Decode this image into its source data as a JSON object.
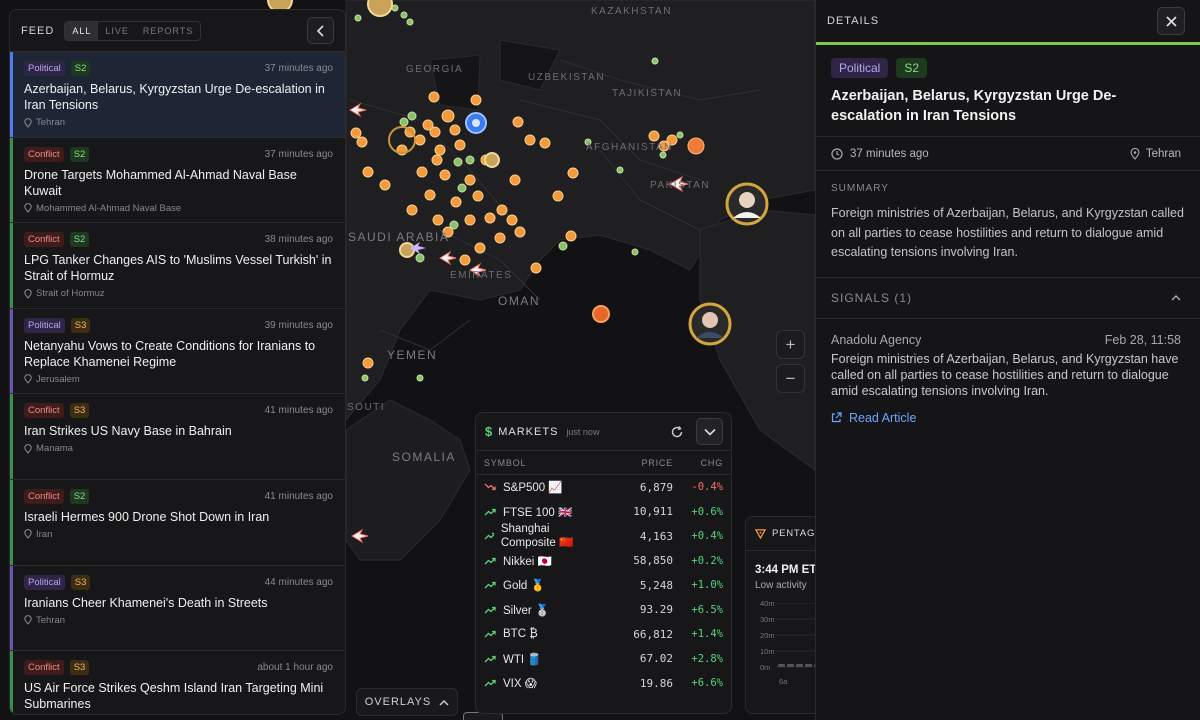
{
  "map": {
    "labels": [
      "GEORGIA",
      "KAZAKHSTAN",
      "UZBEKISTAN",
      "TAJIKISTAN",
      "AFGHANISTAN",
      "PAKISTAN",
      "SAUDI ARABIA",
      "EMIRATES",
      "OMAN",
      "YEMEN",
      "SOMALIA",
      "SOUTI"
    ],
    "zoom_in": "+",
    "zoom_out": "−"
  },
  "feed": {
    "title": "FEED",
    "filters": [
      "ALL",
      "LIVE",
      "REPORTS"
    ],
    "active_filter": "ALL",
    "items": [
      {
        "category": "Political",
        "severity": "S2",
        "time": "37 minutes ago",
        "title": "Azerbaijan, Belarus, Kyrgyzstan Urge De-escalation in Iran Tensions",
        "location": "Tehran",
        "selected": true
      },
      {
        "category": "Conflict",
        "severity": "S2",
        "time": "37 minutes ago",
        "title": "Drone Targets Mohammed Al-Ahmad Naval Base Kuwait",
        "location": "Mohammed Al-Ahmad Naval Base"
      },
      {
        "category": "Conflict",
        "severity": "S2",
        "time": "38 minutes ago",
        "title": "LPG Tanker Changes AIS to 'Muslims Vessel Turkish' in Strait of Hormuz",
        "location": "Strait of Hormuz"
      },
      {
        "category": "Political",
        "severity": "S3",
        "time": "39 minutes ago",
        "title": "Netanyahu Vows to Create Conditions for Iranians to Replace Khamenei Regime",
        "location": "Jerusalem"
      },
      {
        "category": "Conflict",
        "severity": "S3",
        "time": "41 minutes ago",
        "title": "Iran Strikes US Navy Base in Bahrain",
        "location": "Manama"
      },
      {
        "category": "Conflict",
        "severity": "S2",
        "time": "41 minutes ago",
        "title": "Israeli Hermes 900 Drone Shot Down in Iran",
        "location": "Iran"
      },
      {
        "category": "Political",
        "severity": "S3",
        "time": "44 minutes ago",
        "title": "Iranians Cheer Khamenei's Death in Streets",
        "location": "Tehran"
      },
      {
        "category": "Conflict",
        "severity": "S3",
        "time": "about 1 hour ago",
        "title": "US Air Force Strikes Qeshm Island Iran Targeting Mini Submarines",
        "location": ""
      }
    ]
  },
  "overlays": {
    "label": "OVERLAYS"
  },
  "markets": {
    "title": "MARKETS",
    "updated": "just now",
    "columns": {
      "symbol": "SYMBOL",
      "price": "PRICE",
      "chg": "CHG"
    },
    "rows": [
      {
        "symbol": "S&P500 📈",
        "price": "6,879",
        "chg": "-0.4%",
        "dir": "down"
      },
      {
        "symbol": "FTSE 100 🇬🇧",
        "price": "10,911",
        "chg": "+0.6%",
        "dir": "up"
      },
      {
        "symbol": "Shanghai Composite 🇨🇳",
        "price": "4,163",
        "chg": "+0.4%",
        "dir": "up"
      },
      {
        "symbol": "Nikkei 🇯🇵",
        "price": "58,850",
        "chg": "+0.2%",
        "dir": "up"
      },
      {
        "symbol": "Gold 🥇",
        "price": "5,248",
        "chg": "+1.0%",
        "dir": "up"
      },
      {
        "symbol": "Silver 🥈",
        "price": "93.29",
        "chg": "+6.5%",
        "dir": "up"
      },
      {
        "symbol": "BTC ₿",
        "price": "66,812",
        "chg": "+1.4%",
        "dir": "up"
      },
      {
        "symbol": "WTI 🛢️",
        "price": "67.02",
        "chg": "+2.8%",
        "dir": "up"
      },
      {
        "symbol": "VIX 😱",
        "price": "19.86",
        "chg": "+6.6%",
        "dir": "up"
      }
    ]
  },
  "pentagon": {
    "title": "PENTAGO",
    "time": "3:44 PM ET",
    "activity": "Low activity",
    "y_ticks": [
      "40m",
      "30m",
      "20m",
      "10m",
      "0m"
    ],
    "x_tick": "6a"
  },
  "details": {
    "header": "DETAILS",
    "category": "Political",
    "severity": "S2",
    "title": "Azerbaijan, Belarus, Kyrgyzstan Urge De-escalation in Iran Tensions",
    "time": "37 minutes ago",
    "location": "Tehran",
    "summary_label": "SUMMARY",
    "summary": "Foreign ministries of Azerbaijan, Belarus, and Kyrgyzstan called on all parties to cease hostilities and return to dialogue amid escalating tensions involving Iran.",
    "signals_label": "SIGNALS (1)",
    "signal": {
      "source": "Anadolu Agency",
      "date": "Feb 28, 11:58",
      "text": "Foreign ministries of Azerbaijan, Belarus, and Kyrgyzstan have called on all parties to cease hostilities and return to dialogue amid escalating tensions involving Iran.",
      "link": "Read Article"
    }
  },
  "colors": {
    "political": "#b9a5ef",
    "conflict": "#ec8a82",
    "accent": "#7fc84d",
    "up": "#5ad17a",
    "down": "#f07167",
    "link": "#6aa6ff"
  }
}
